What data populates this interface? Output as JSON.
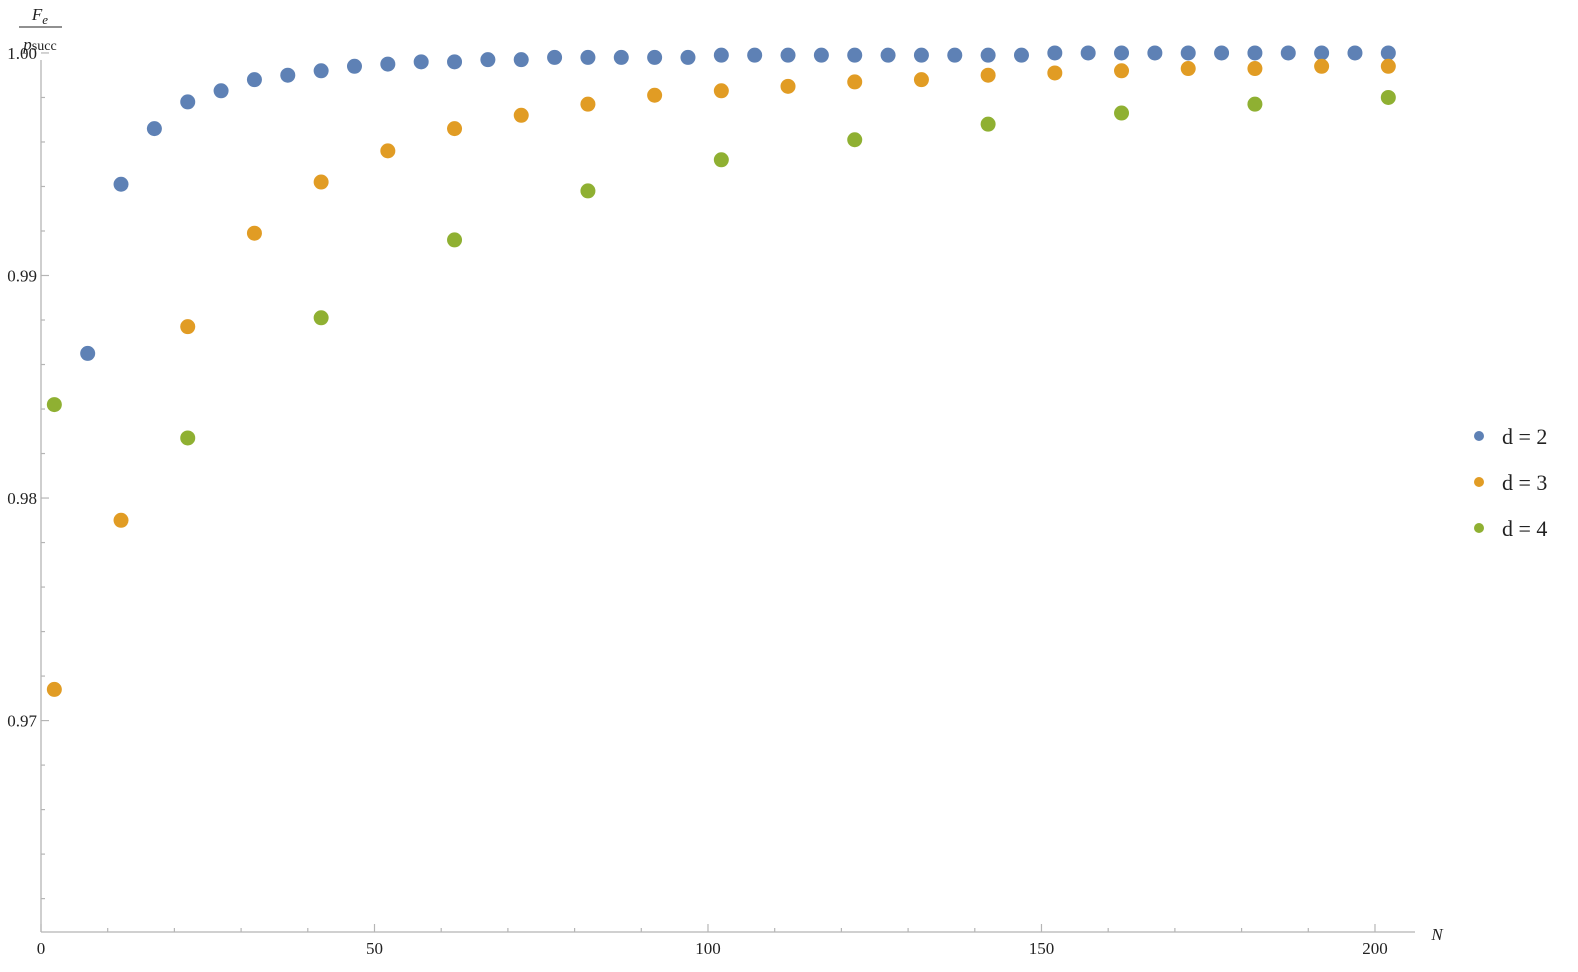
{
  "chart_data": {
    "type": "scatter",
    "title": "",
    "xlabel": "N",
    "ylabel": {
      "numerator": "F",
      "numerator_sub": "e",
      "denominator": "p",
      "denominator_sub": "succ"
    },
    "xlim": [
      0,
      206
    ],
    "ylim": [
      0.9605,
      1.0022
    ],
    "x_ticks": [
      0,
      50,
      100,
      150,
      200
    ],
    "y_ticks": [
      0.97,
      0.98,
      0.99,
      1.0
    ],
    "x_tick_labels": [
      "0",
      "50",
      "100",
      "150",
      "200"
    ],
    "y_tick_labels": [
      "0.97",
      "0.98",
      "0.99",
      "1.00"
    ],
    "x_minor_ticks": [
      10,
      20,
      30,
      40,
      60,
      70,
      80,
      90,
      110,
      120,
      130,
      140,
      160,
      170,
      180,
      190
    ],
    "y_minor_ticks": [
      0.962,
      0.964,
      0.966,
      0.968,
      0.972,
      0.974,
      0.976,
      0.978,
      0.982,
      0.984,
      0.986,
      0.988,
      0.992,
      0.994,
      0.996,
      0.998
    ],
    "grid": false,
    "legend_position": "right",
    "series": [
      {
        "name": "d = 2",
        "color": "#5e81b5",
        "points": [
          [
            7,
            0.9865
          ],
          [
            12,
            0.9941
          ],
          [
            17,
            0.9966
          ],
          [
            22,
            0.9978
          ],
          [
            27,
            0.9983
          ],
          [
            32,
            0.9988
          ],
          [
            37,
            0.999
          ],
          [
            42,
            0.9992
          ],
          [
            47,
            0.9994
          ],
          [
            52,
            0.9995
          ],
          [
            57,
            0.9996
          ],
          [
            62,
            0.9996
          ],
          [
            67,
            0.9997
          ],
          [
            72,
            0.9997
          ],
          [
            77,
            0.9998
          ],
          [
            82,
            0.9998
          ],
          [
            87,
            0.9998
          ],
          [
            92,
            0.9998
          ],
          [
            97,
            0.9998
          ],
          [
            102,
            0.9999
          ],
          [
            107,
            0.9999
          ],
          [
            112,
            0.9999
          ],
          [
            117,
            0.9999
          ],
          [
            122,
            0.9999
          ],
          [
            127,
            0.9999
          ],
          [
            132,
            0.9999
          ],
          [
            137,
            0.9999
          ],
          [
            142,
            0.9999
          ],
          [
            147,
            0.9999
          ],
          [
            152,
            1.0
          ],
          [
            157,
            1.0
          ],
          [
            162,
            1.0
          ],
          [
            167,
            1.0
          ],
          [
            172,
            1.0
          ],
          [
            177,
            1.0
          ],
          [
            182,
            1.0
          ],
          [
            187,
            1.0
          ],
          [
            192,
            1.0
          ],
          [
            197,
            1.0
          ],
          [
            202,
            1.0
          ]
        ]
      },
      {
        "name": "d = 3",
        "color": "#e19c24",
        "points": [
          [
            2,
            0.9714
          ],
          [
            12,
            0.979
          ],
          [
            22,
            0.9877
          ],
          [
            32,
            0.9919
          ],
          [
            42,
            0.9942
          ],
          [
            52,
            0.9956
          ],
          [
            62,
            0.9966
          ],
          [
            72,
            0.9972
          ],
          [
            82,
            0.9977
          ],
          [
            92,
            0.9981
          ],
          [
            102,
            0.9983
          ],
          [
            112,
            0.9985
          ],
          [
            122,
            0.9987
          ],
          [
            132,
            0.9988
          ],
          [
            142,
            0.999
          ],
          [
            152,
            0.9991
          ],
          [
            162,
            0.9992
          ],
          [
            172,
            0.9993
          ],
          [
            182,
            0.9993
          ],
          [
            192,
            0.9994
          ],
          [
            202,
            0.9994
          ]
        ]
      },
      {
        "name": "d = 4",
        "color": "#8fb032",
        "points": [
          [
            2,
            0.9842
          ],
          [
            22,
            0.9827
          ],
          [
            42,
            0.9881
          ],
          [
            62,
            0.9916
          ],
          [
            82,
            0.9938
          ],
          [
            102,
            0.9952
          ],
          [
            122,
            0.9961
          ],
          [
            142,
            0.9968
          ],
          [
            162,
            0.9973
          ],
          [
            182,
            0.9977
          ],
          [
            202,
            0.998
          ]
        ]
      }
    ]
  }
}
